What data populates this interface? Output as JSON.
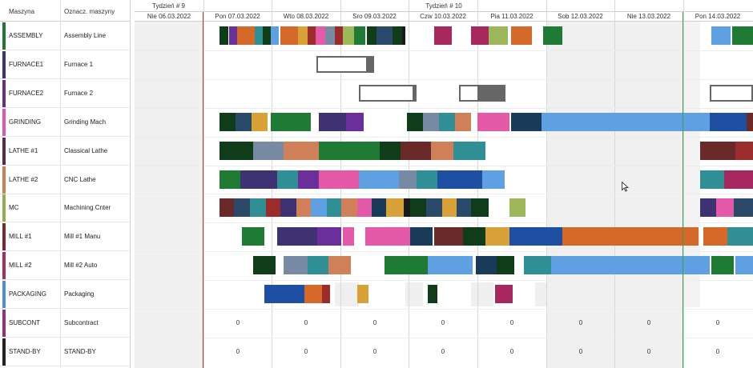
{
  "columns": {
    "code": "Maszyna",
    "name": "Oznacz. maszyny"
  },
  "weeks": [
    "Tydzień # 9",
    "Tydzień # 10"
  ],
  "days": [
    "Nie 06.03.2022",
    "Pon 07.03.2022",
    "Wto 08.03.2022",
    "Sro 09.03.2022",
    "Czw 10.03.2022",
    "Pia 11.03.2022",
    "Sob 12.03.2022",
    "Nie 13.03.2022",
    "Pon 14.03.2022"
  ],
  "machines": [
    {
      "code": "ASSEMBLY",
      "name": "Assembly Line",
      "accent": "#1e7a32"
    },
    {
      "code": "FURNACE1",
      "name": "Furnace 1",
      "accent": "#3f2f7a"
    },
    {
      "code": "FURNACE2",
      "name": "Furnace 2",
      "accent": "#6a2d8a"
    },
    {
      "code": "GRINDING",
      "name": "Grinding Mach",
      "accent": "#e256a6"
    },
    {
      "code": "LATHE #1",
      "name": "Classical Lathe",
      "accent": "#5b2b4e"
    },
    {
      "code": "LATHE #2",
      "name": "CNC Lathe",
      "accent": "#cf7f52"
    },
    {
      "code": "MC",
      "name": "Machining Cnter",
      "accent": "#8fb04a"
    },
    {
      "code": "MILL #1",
      "name": "Mill #1 Manu",
      "accent": "#7b2b2b"
    },
    {
      "code": "MILL #2",
      "name": "Mill #2 Auto",
      "accent": "#a82d5e"
    },
    {
      "code": "PACKAGING",
      "name": "Packaging",
      "accent": "#4a90d9"
    },
    {
      "code": "SUBCONT",
      "name": "Subcontract",
      "accent": "#9a2f72"
    },
    {
      "code": "STAND-BY",
      "name": "STAND-BY",
      "accent": "#222222"
    }
  ],
  "zero_label": "0"
}
